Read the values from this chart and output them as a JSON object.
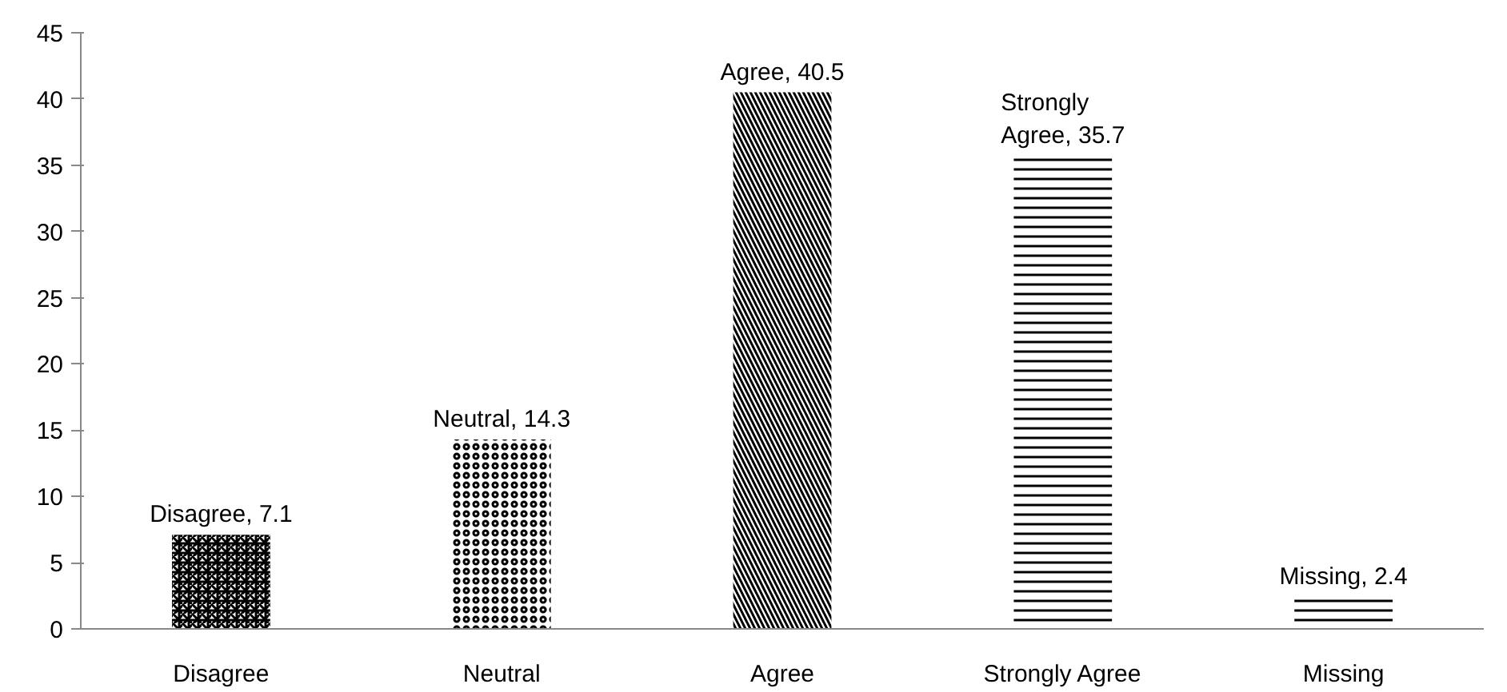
{
  "chart_data": {
    "type": "bar",
    "categories": [
      "Disagree",
      "Neutral",
      "Agree",
      "Strongly Agree",
      "Missing"
    ],
    "values": [
      7.1,
      14.3,
      40.5,
      35.7,
      2.4
    ],
    "value_labels": [
      "Disagree, 7.1",
      "Neutral, 14.3",
      "Agree, 40.5",
      "Strongly Agree, 35.7",
      "Missing, 2.4"
    ],
    "color": "#000000",
    "ylim": [
      0,
      45
    ],
    "yticks": [
      0,
      5,
      10,
      15,
      20,
      25,
      30,
      35,
      40,
      45
    ],
    "grid": false
  }
}
